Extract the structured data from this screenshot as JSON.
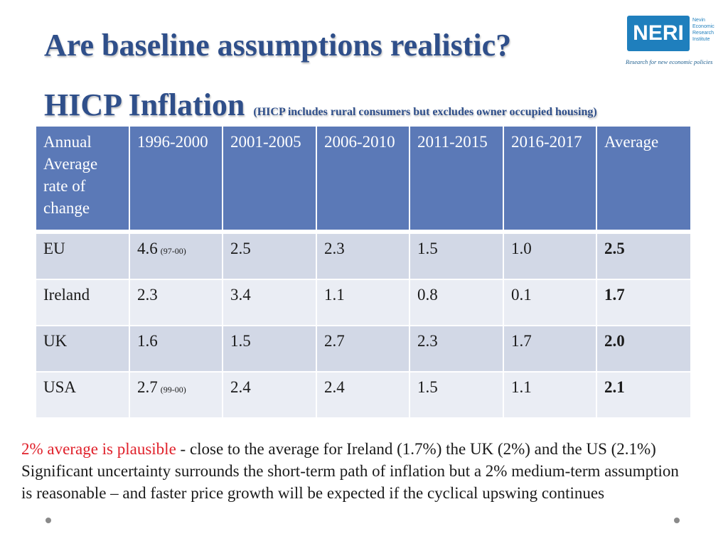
{
  "title": "Are baseline assumptions realistic?",
  "subtitle": {
    "main": "HICP Inflation",
    "note": "(HICP includes rural consumers but excludes owner occupied housing)"
  },
  "logo": {
    "acronym": "NERI",
    "names": [
      "Nevin",
      "Economic",
      "Research",
      "Institute"
    ],
    "tagline": "Research for new economic policies",
    "color": "#1f7fbd"
  },
  "table": {
    "headers": [
      "Annual Average rate of change",
      "1996-2000",
      "2001-2005",
      "2006-2010",
      "2011-2015",
      "2016-2017",
      "Average"
    ],
    "rows": [
      {
        "label": "EU",
        "values": [
          "4.6",
          "2.5",
          "2.3",
          "1.5",
          "1.0"
        ],
        "note": "(97-00)",
        "average": "2.5"
      },
      {
        "label": "Ireland",
        "values": [
          "2.3",
          "3.4",
          "1.1",
          "0.8",
          "0.1"
        ],
        "note": "",
        "average": "1.7"
      },
      {
        "label": "UK",
        "values": [
          "1.6",
          "1.5",
          "2.7",
          "2.3",
          "1.7"
        ],
        "note": "",
        "average": "2.0"
      },
      {
        "label": "USA",
        "values": [
          "2.7",
          "2.4",
          "2.4",
          "1.5",
          "1.1"
        ],
        "note": "(99-00)",
        "average": "2.1"
      }
    ],
    "header_color": "#5b79b7",
    "row_color_dark": "#d2d8e6",
    "row_color_light": "#eaedf4"
  },
  "footer": {
    "highlight": "2% average is plausible",
    "line1_rest": " - close to the average for Ireland (1.7%) the UK (2%) and the US (2.1%)",
    "line2": "Significant uncertainty surrounds the short-term path of inflation  but a 2% medium-term assumption is reasonable – and faster price growth will be expected if the cyclical upswing continues",
    "highlight_color": "#e0202a"
  }
}
